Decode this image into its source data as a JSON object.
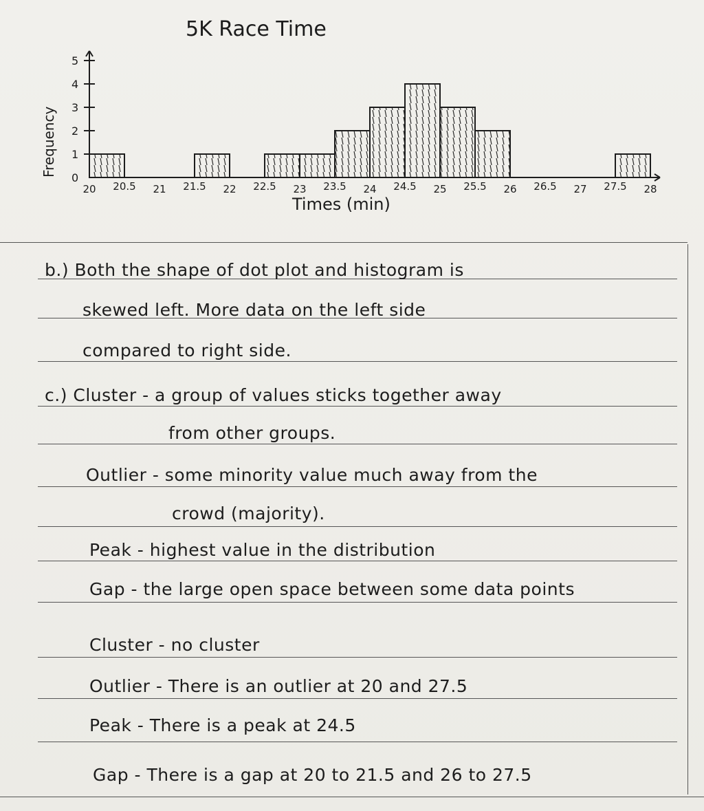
{
  "chart_data": {
    "type": "bar",
    "title": "5K Race Time",
    "xlabel": "Times (min)",
    "ylabel": "Frequency",
    "y_ticks": [
      "0",
      "1",
      "2",
      "3",
      "4",
      "5"
    ],
    "x_ticks": [
      "20",
      "20.5",
      "21",
      "21.5",
      "22",
      "22.5",
      "23",
      "23.5",
      "24",
      "24.5",
      "25",
      "25.5",
      "26",
      "26.5",
      "27",
      "27.5",
      "28"
    ],
    "bins": [
      {
        "start": 20,
        "end": 20.5,
        "value": 1
      },
      {
        "start": 21.5,
        "end": 22,
        "value": 1
      },
      {
        "start": 22.5,
        "end": 23,
        "value": 1
      },
      {
        "start": 23,
        "end": 23.5,
        "value": 1
      },
      {
        "start": 23.5,
        "end": 24,
        "value": 2
      },
      {
        "start": 24,
        "end": 24.5,
        "value": 3
      },
      {
        "start": 24.5,
        "end": 25,
        "value": 4
      },
      {
        "start": 25,
        "end": 25.5,
        "value": 3
      },
      {
        "start": 25.5,
        "end": 26,
        "value": 2
      },
      {
        "start": 27.5,
        "end": 28,
        "value": 1
      }
    ],
    "xlim": [
      20,
      28
    ],
    "ylim": [
      0,
      5
    ]
  },
  "notes": {
    "line1": "b.) Both the shape of dot plot and histogram is",
    "line2": "skewed left. More data on the left side",
    "line3": "compared to right side.",
    "line4": "c.) Cluster - a group of values sticks together away",
    "line5": "from other groups.",
    "line6": "Outlier - some minority value much away from the",
    "line7": "crowd (majority).",
    "line8": "Peak - highest value in the distribution",
    "line9": "Gap - the large open space between some data points",
    "line10": "Cluster - no cluster",
    "line11": "Outlier - There is an outlier at 20 and 27.5",
    "line12": "Peak - There is a peak at 24.5",
    "line13": "Gap - There is a gap at 20 to 21.5 and 26 to 27.5"
  }
}
